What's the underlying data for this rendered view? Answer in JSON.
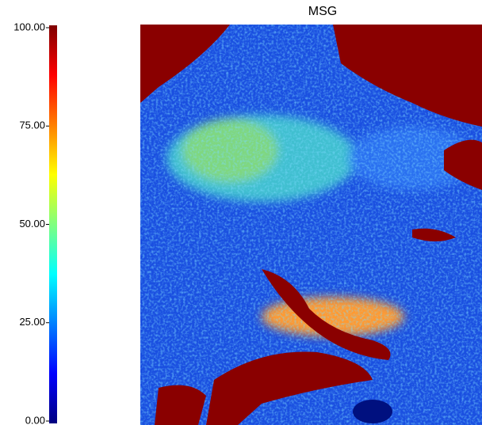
{
  "chart_data": {
    "type": "heatmap",
    "title": "MSG",
    "colorbar": {
      "ylim": [
        0,
        100
      ],
      "yticks": [
        {
          "value": 0,
          "label": "0.00"
        },
        {
          "value": 25,
          "label": "25.00"
        },
        {
          "value": 50,
          "label": "50.00"
        },
        {
          "value": 75,
          "label": "75.00"
        },
        {
          "value": 100,
          "label": "100.00"
        }
      ],
      "colormap": [
        "#00007f",
        "#0000ff",
        "#007fff",
        "#00ffff",
        "#7fff7f",
        "#ffff00",
        "#ff7f00",
        "#ff0000",
        "#7f0000"
      ]
    }
  }
}
